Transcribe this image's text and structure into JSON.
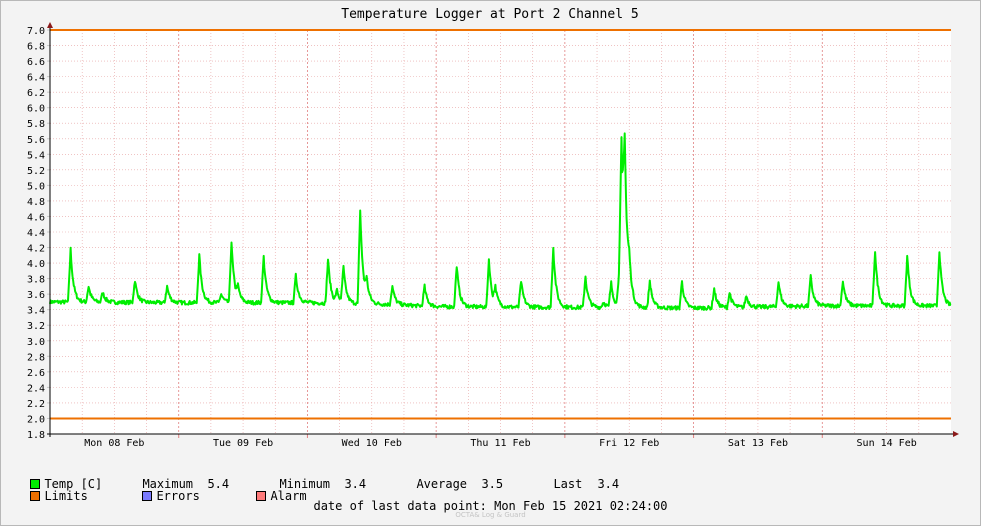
{
  "chart_data": {
    "type": "line",
    "title": "Temperature Logger at Port 2 Channel 5",
    "ylim": [
      1.8,
      7.0
    ],
    "yticks": [
      "7.0",
      "6.8",
      "6.6",
      "6.4",
      "6.2",
      "6.0",
      "5.8",
      "5.6",
      "5.4",
      "5.2",
      "5.0",
      "4.8",
      "4.6",
      "4.4",
      "4.2",
      "4.0",
      "3.8",
      "3.6",
      "3.4",
      "3.2",
      "3.0",
      "2.8",
      "2.6",
      "2.4",
      "2.2",
      "2.0",
      "1.8"
    ],
    "x_range_days": [
      0,
      7.0
    ],
    "day_labels": [
      "Mon 08 Feb",
      "Tue 09 Feb",
      "Wed 10 Feb",
      "Thu 11 Feb",
      "Fri 12 Feb",
      "Sat 13 Feb",
      "Sun 14 Feb"
    ],
    "limits": [
      7.0,
      2.0
    ],
    "series": [
      {
        "name": "Temp [C]",
        "color": "#00ee00",
        "baseline": [
          [
            0,
            3.5
          ],
          [
            1.0,
            3.49
          ],
          [
            2.0,
            3.49
          ],
          [
            2.6,
            3.47
          ],
          [
            3.0,
            3.44
          ],
          [
            4.0,
            3.43
          ],
          [
            4.5,
            3.43
          ],
          [
            5.0,
            3.42
          ],
          [
            6.0,
            3.45
          ],
          [
            7.0,
            3.45
          ]
        ],
        "spikes": [
          {
            "t": 0.16,
            "peak": 4.18
          },
          {
            "t": 0.3,
            "peak": 3.7
          },
          {
            "t": 0.41,
            "peak": 3.62
          },
          {
            "t": 0.66,
            "peak": 3.78
          },
          {
            "t": 0.91,
            "peak": 3.7
          },
          {
            "t": 1.16,
            "peak": 4.1
          },
          {
            "t": 1.33,
            "peak": 3.6
          },
          {
            "t": 1.41,
            "peak": 4.27
          },
          {
            "t": 1.46,
            "peak": 3.64
          },
          {
            "t": 1.66,
            "peak": 4.08
          },
          {
            "t": 1.91,
            "peak": 3.84
          },
          {
            "t": 2.16,
            "peak": 4.05
          },
          {
            "t": 2.23,
            "peak": 3.63
          },
          {
            "t": 2.28,
            "peak": 3.93
          },
          {
            "t": 2.41,
            "peak": 4.69
          },
          {
            "t": 2.46,
            "peak": 3.7
          },
          {
            "t": 2.66,
            "peak": 3.7
          },
          {
            "t": 2.91,
            "peak": 3.7
          },
          {
            "t": 3.16,
            "peak": 3.97
          },
          {
            "t": 3.41,
            "peak": 4.05
          },
          {
            "t": 3.46,
            "peak": 3.64
          },
          {
            "t": 3.66,
            "peak": 3.77
          },
          {
            "t": 3.91,
            "peak": 4.2
          },
          {
            "t": 4.16,
            "peak": 3.83
          },
          {
            "t": 4.3,
            "peak": 3.5
          },
          {
            "t": 4.36,
            "peak": 3.74
          },
          {
            "t": 4.42,
            "peak": 3.83
          },
          {
            "t": 4.44,
            "peak": 5.43
          },
          {
            "t": 4.465,
            "peak": 4.98
          },
          {
            "t": 4.5,
            "peak": 3.73
          },
          {
            "t": 4.66,
            "peak": 3.77
          },
          {
            "t": 4.91,
            "peak": 3.76
          },
          {
            "t": 5.16,
            "peak": 3.67
          },
          {
            "t": 5.28,
            "peak": 3.62
          },
          {
            "t": 5.41,
            "peak": 3.58
          },
          {
            "t": 5.66,
            "peak": 3.76
          },
          {
            "t": 5.91,
            "peak": 3.83
          },
          {
            "t": 6.16,
            "peak": 3.77
          },
          {
            "t": 6.41,
            "peak": 4.16
          },
          {
            "t": 6.66,
            "peak": 4.1
          },
          {
            "t": 6.91,
            "peak": 4.16
          }
        ]
      },
      {
        "name": "Limits",
        "color": "#ee7000"
      },
      {
        "name": "Errors",
        "color": "#7b7bff"
      },
      {
        "name": "Alarm",
        "color": "#ff7b7b"
      }
    ]
  },
  "legend": {
    "temp_label": "Temp [C]",
    "maximum_label": "Maximum",
    "maximum_value": "5.4",
    "minimum_label": "Minimum",
    "minimum_value": "3.4",
    "average_label": "Average",
    "average_value": "3.5",
    "last_label": "Last",
    "last_value": "3.4",
    "limits_label": "Limits",
    "errors_label": "Errors",
    "alarm_label": "Alarm"
  },
  "footer": {
    "last_data_point": "date of last data point:  Mon Feb 15 2021 02:24:00",
    "watermark": "OCTA& Log & Guard"
  }
}
